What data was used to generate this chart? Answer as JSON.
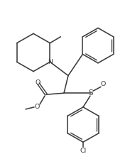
{
  "bg_color": "#ffffff",
  "line_color": "#3c3c3c",
  "line_width": 1.15,
  "figsize": [
    1.83,
    2.17
  ],
  "dpi": 100,
  "xlim": [
    0,
    183
  ],
  "ylim": [
    217,
    0
  ]
}
